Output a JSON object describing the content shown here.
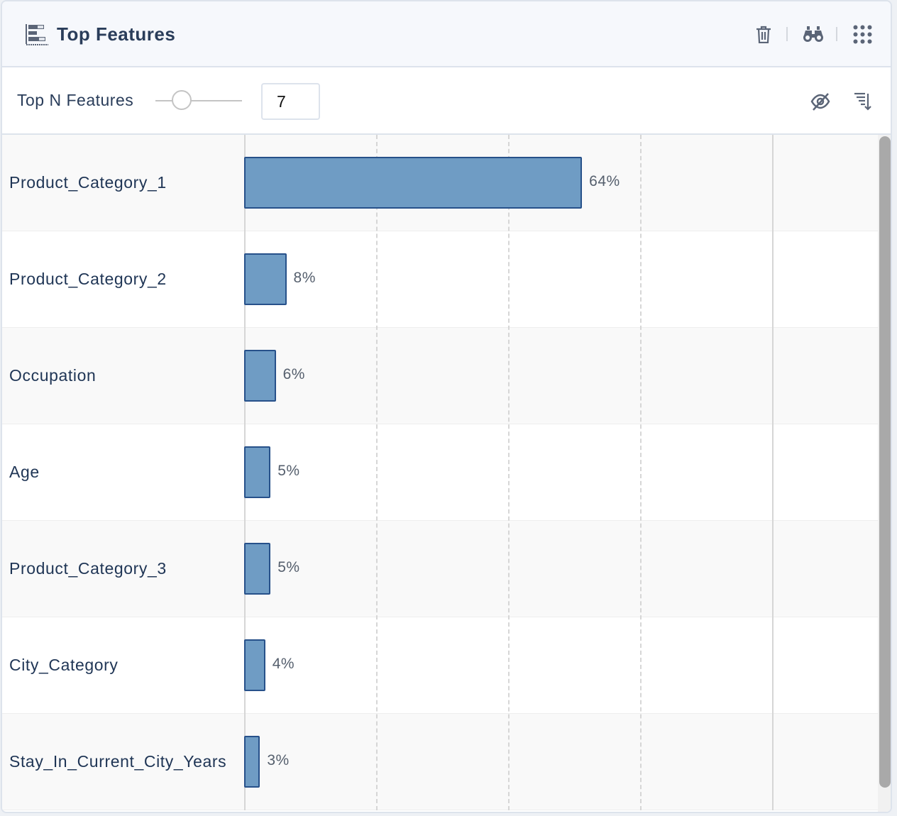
{
  "header": {
    "title": "Top Features",
    "icons": [
      "feature-chart-icon",
      "trash-icon",
      "binoculars-icon",
      "grid-menu-icon"
    ]
  },
  "toolbar": {
    "top_n_label": "Top N Features",
    "top_n_value": "7",
    "slider_fraction": 0.3,
    "icons": [
      "eye-slash-icon",
      "sort-descending-icon"
    ]
  },
  "chart_data": {
    "type": "bar",
    "orientation": "horizontal",
    "categories": [
      "Product_Category_1",
      "Product_Category_2",
      "Occupation",
      "Age",
      "Product_Category_3",
      "City_Category",
      "Stay_In_Current_City_Years"
    ],
    "values": [
      64,
      8,
      6,
      5,
      5,
      4,
      3
    ],
    "value_labels": [
      "64%",
      "8%",
      "6%",
      "5%",
      "5%",
      "4%",
      "3%"
    ],
    "xlim": [
      0,
      100
    ],
    "grid_x": [
      0,
      25,
      50,
      75,
      100
    ],
    "bar_color": "#6f9cc4",
    "bar_border": "#27518a"
  }
}
